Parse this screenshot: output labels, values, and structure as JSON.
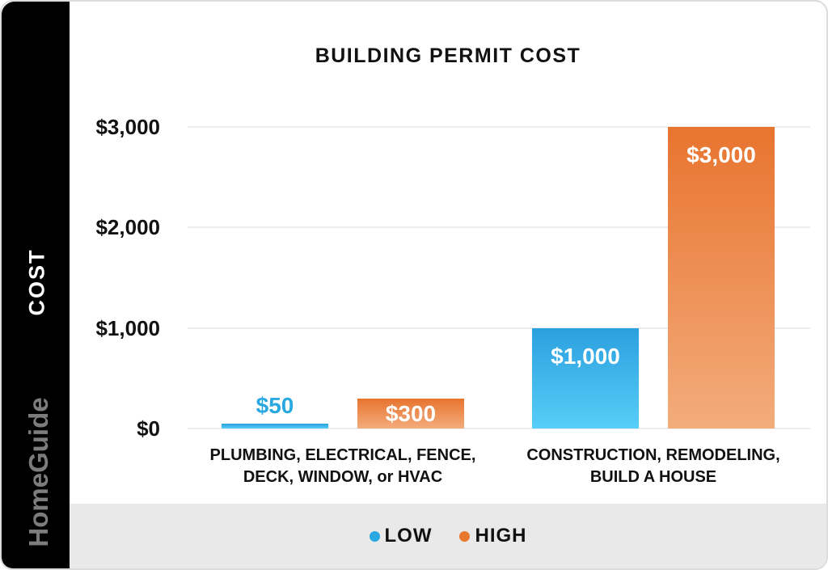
{
  "page": {
    "background": "#ffffff",
    "border_color": "#dcdcdc"
  },
  "sidebar": {
    "cost_label": "COST",
    "brand": "HomeGuide",
    "background": "#000000",
    "cost_color": "#ffffff",
    "brand_color": "#7c7c7c"
  },
  "title": "BUILDING PERMIT COST",
  "legend": {
    "band_color": "#e9e9e9",
    "items": [
      {
        "label": "LOW",
        "color": "#29a8e1"
      },
      {
        "label": "HIGH",
        "color": "#e8782f"
      }
    ]
  },
  "chart_data": {
    "type": "bar",
    "title": "BUILDING PERMIT COST",
    "xlabel": "",
    "ylabel": "COST",
    "categories": [
      "PLUMBING, ELECTRICAL, FENCE,\nDECK, WINDOW, or HVAC",
      "CONSTRUCTION, REMODELING,\nBUILD A HOUSE"
    ],
    "series": [
      {
        "name": "LOW",
        "values": [
          50,
          1000
        ],
        "labels": [
          "$50",
          "$1,000"
        ],
        "color_top": "#2ba0df",
        "color_bottom": "#57cdf8",
        "label_outside_color": "#29a8e1"
      },
      {
        "name": "HIGH",
        "values": [
          300,
          3000
        ],
        "labels": [
          "$300",
          "$3,000"
        ],
        "color_top": "#e8742f",
        "color_bottom": "#f3ac7c",
        "label_outside_color": "#e8782f"
      }
    ],
    "y_ticks": [
      {
        "value": 0,
        "label": "$0"
      },
      {
        "value": 1000,
        "label": "$1,000"
      },
      {
        "value": 2000,
        "label": "$2,000"
      },
      {
        "value": 3000,
        "label": "$3,000"
      }
    ],
    "ylim": [
      0,
      3000
    ],
    "grid": true,
    "gridline_color": "#ededed",
    "legend_position": "bottom"
  }
}
